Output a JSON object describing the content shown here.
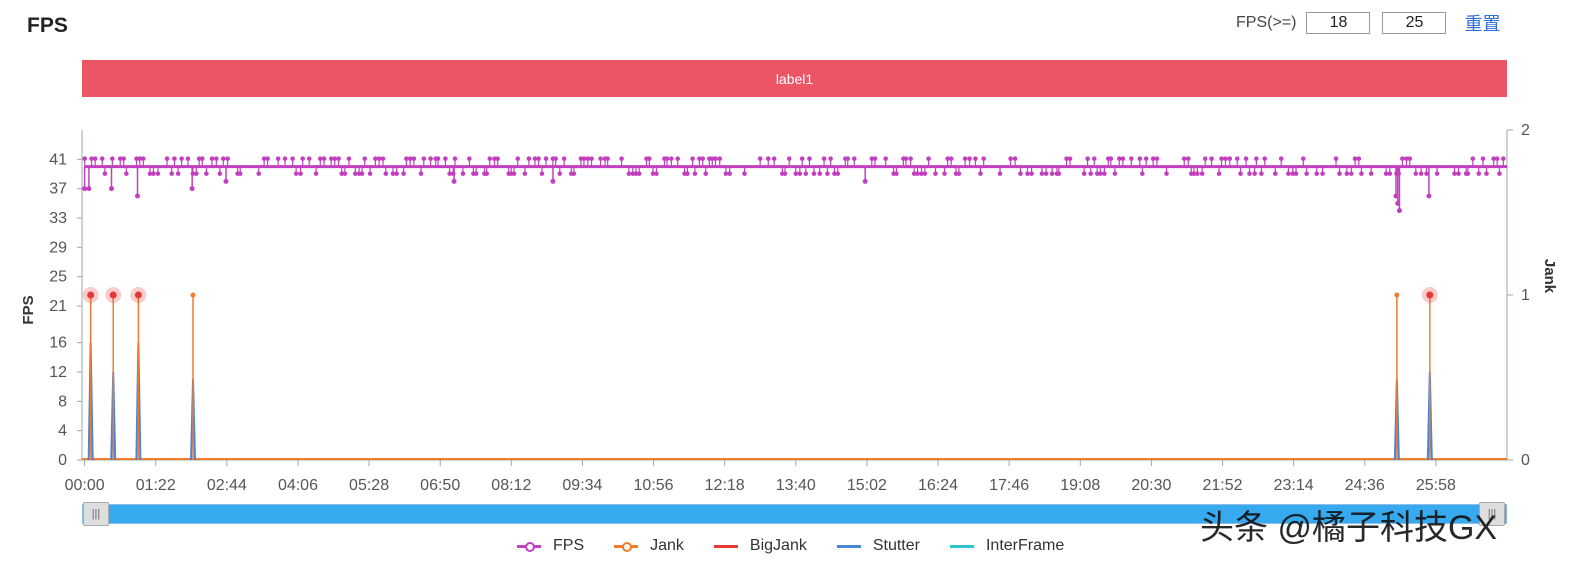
{
  "header": {
    "title": "FPS",
    "threshold_label": "FPS(>=)",
    "threshold_low": "18",
    "threshold_high": "25",
    "reset_label": "重置"
  },
  "label_bar": {
    "text": "label1",
    "color": "#ec5565"
  },
  "watermark": "头条 @橘子科技GX",
  "legend": [
    {
      "name": "FPS",
      "color": "#c23fbf",
      "marker": true
    },
    {
      "name": "Jank",
      "color": "#f07c2c",
      "marker": true
    },
    {
      "name": "BigJank",
      "color": "#e53935",
      "marker": false
    },
    {
      "name": "Stutter",
      "color": "#4a84d8",
      "marker": false
    },
    {
      "name": "InterFrame",
      "color": "#2bc6cf",
      "marker": false
    }
  ],
  "chart_data": {
    "type": "line",
    "ylabel": "FPS",
    "y2label": "Jank",
    "y_ticks": [
      0,
      4,
      8,
      12,
      16,
      21,
      25,
      29,
      33,
      37,
      41
    ],
    "y_range": [
      0,
      45
    ],
    "y2_ticks": [
      0,
      1,
      2
    ],
    "y2_range": [
      0,
      2
    ],
    "x_ticks": [
      "00:00",
      "01:22",
      "02:44",
      "04:06",
      "05:28",
      "06:50",
      "08:12",
      "09:34",
      "10:56",
      "12:18",
      "13:40",
      "15:02",
      "16:24",
      "17:46",
      "19:08",
      "20:30",
      "21:52",
      "23:14",
      "24:36",
      "25:58"
    ],
    "x_tick_seconds": [
      0,
      82,
      164,
      246,
      328,
      410,
      492,
      574,
      656,
      738,
      820,
      902,
      984,
      1066,
      1148,
      1230,
      1312,
      1394,
      1476,
      1558
    ],
    "x_range_seconds": [
      -3,
      1640
    ],
    "series": [
      {
        "name": "FPS",
        "axis": "left",
        "baseline": 40,
        "dips": [
          {
            "t": 0,
            "v": 37
          },
          {
            "t": 5,
            "v": 37
          },
          {
            "t": 31,
            "v": 37
          },
          {
            "t": 61,
            "v": 36
          },
          {
            "t": 124,
            "v": 37
          },
          {
            "t": 163,
            "v": 38
          },
          {
            "t": 426,
            "v": 38
          },
          {
            "t": 540,
            "v": 38
          },
          {
            "t": 900,
            "v": 38
          },
          {
            "t": 1512,
            "v": 36
          },
          {
            "t": 1514,
            "v": 35
          },
          {
            "t": 1516,
            "v": 34
          },
          {
            "t": 1550,
            "v": 36
          }
        ]
      },
      {
        "name": "Jank",
        "axis": "right",
        "events": [
          {
            "t": 7,
            "v": 1
          },
          {
            "t": 33,
            "v": 1
          },
          {
            "t": 62,
            "v": 1
          },
          {
            "t": 125,
            "v": 1
          },
          {
            "t": 1513,
            "v": 1
          },
          {
            "t": 1551,
            "v": 1
          }
        ]
      },
      {
        "name": "BigJank",
        "axis": "right",
        "events": [
          {
            "t": 7,
            "v": 1
          },
          {
            "t": 33,
            "v": 1
          },
          {
            "t": 62,
            "v": 1
          },
          {
            "t": 1551,
            "v": 1
          }
        ]
      },
      {
        "name": "Stutter",
        "axis": "left",
        "events": [
          {
            "t": 7,
            "v": 16
          },
          {
            "t": 33,
            "v": 12
          },
          {
            "t": 62,
            "v": 16
          },
          {
            "t": 125,
            "v": 11
          },
          {
            "t": 1513,
            "v": 11
          },
          {
            "t": 1551,
            "v": 12
          }
        ]
      },
      {
        "name": "InterFrame",
        "axis": "right",
        "events": []
      }
    ],
    "grid": false,
    "legend_position": "bottom"
  }
}
